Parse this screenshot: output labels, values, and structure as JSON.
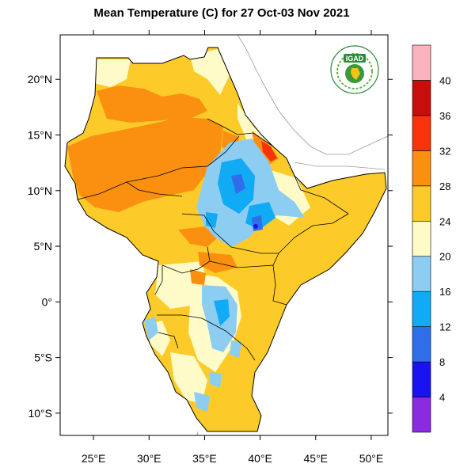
{
  "title": "Mean Temperature (C) for 27 Oct-03 Nov 2021",
  "logo": {
    "text": "IGAD"
  },
  "axes": {
    "lon_ticks": [
      "25°E",
      "30°E",
      "35°E",
      "40°E",
      "45°E",
      "50°E"
    ],
    "lat_ticks": [
      "20°N",
      "15°N",
      "10°N",
      "5°N",
      "0°",
      "5°S",
      "10°S"
    ],
    "lon_values": [
      25,
      30,
      35,
      40,
      45,
      50
    ],
    "lat_values": [
      20,
      15,
      10,
      5,
      0,
      -5,
      -10
    ],
    "lon_range": [
      22,
      51.5
    ],
    "lat_range": [
      -12,
      24
    ]
  },
  "colorbar": {
    "labels": [
      "4",
      "8",
      "12",
      "16",
      "20",
      "24",
      "28",
      "32",
      "36",
      "40"
    ],
    "bins": [
      {
        "color": "#8a2be2"
      },
      {
        "color": "#1a12f0"
      },
      {
        "color": "#2f6ee8"
      },
      {
        "color": "#11aaf5"
      },
      {
        "color": "#8dcdf2"
      },
      {
        "color": "#fefbc8"
      },
      {
        "color": "#fccb2a"
      },
      {
        "color": "#fb9010"
      },
      {
        "color": "#f9320a"
      },
      {
        "color": "#c80d0d"
      },
      {
        "color": "#fbb4bf"
      }
    ]
  }
}
